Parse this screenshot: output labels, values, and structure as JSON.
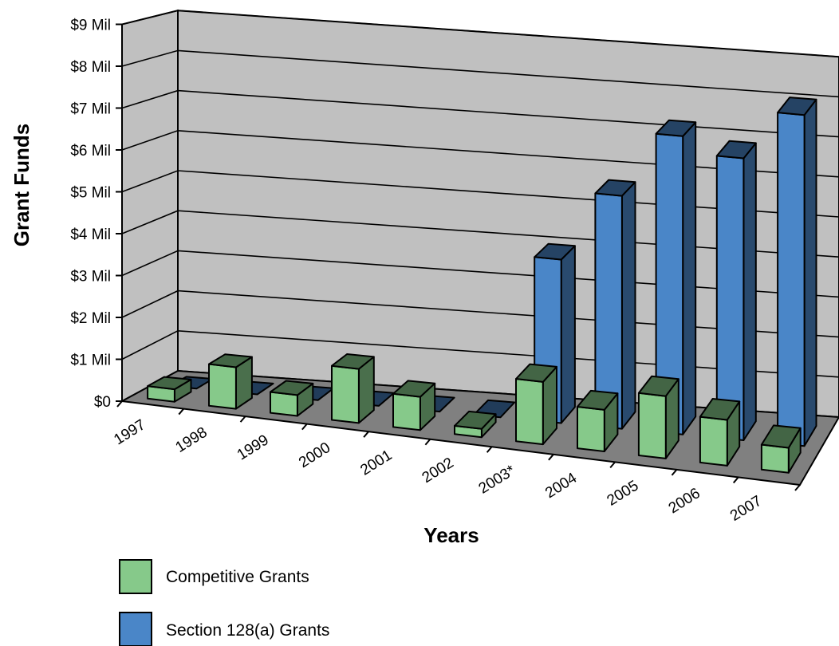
{
  "chart_data": {
    "type": "bar",
    "title": "",
    "xlabel": "Years",
    "ylabel": "Grant Funds",
    "ylim": [
      0,
      9
    ],
    "y_ticks": [
      {
        "value": 0,
        "label": "$0"
      },
      {
        "value": 1,
        "label": "$1 Mil"
      },
      {
        "value": 2,
        "label": "$2 Mil"
      },
      {
        "value": 3,
        "label": "$3 Mil"
      },
      {
        "value": 4,
        "label": "$4 Mil"
      },
      {
        "value": 5,
        "label": "$5 Mil"
      },
      {
        "value": 6,
        "label": "$6 Mil"
      },
      {
        "value": 7,
        "label": "$7 Mil"
      },
      {
        "value": 8,
        "label": "$8 Mil"
      },
      {
        "value": 9,
        "label": "$9 Mil"
      }
    ],
    "categories": [
      "1997",
      "1998",
      "1999",
      "2000",
      "2001",
      "2002",
      "2003*",
      "2004",
      "2005",
      "2006",
      "2007"
    ],
    "series": [
      {
        "name": "Competitive Grants",
        "color": "#86c98a",
        "values": [
          0.3,
          1.0,
          0.5,
          1.3,
          0.8,
          0.2,
          1.5,
          1.0,
          1.5,
          1.1,
          0.6
        ]
      },
      {
        "name": "Section 128(a) Grants",
        "color": "#4a86c8",
        "values": [
          0,
          0,
          0,
          0,
          0,
          0,
          4.0,
          5.7,
          7.3,
          6.9,
          8.1
        ]
      }
    ],
    "grid": true,
    "legend_position": "bottom-left",
    "style": "3d-clustered"
  }
}
